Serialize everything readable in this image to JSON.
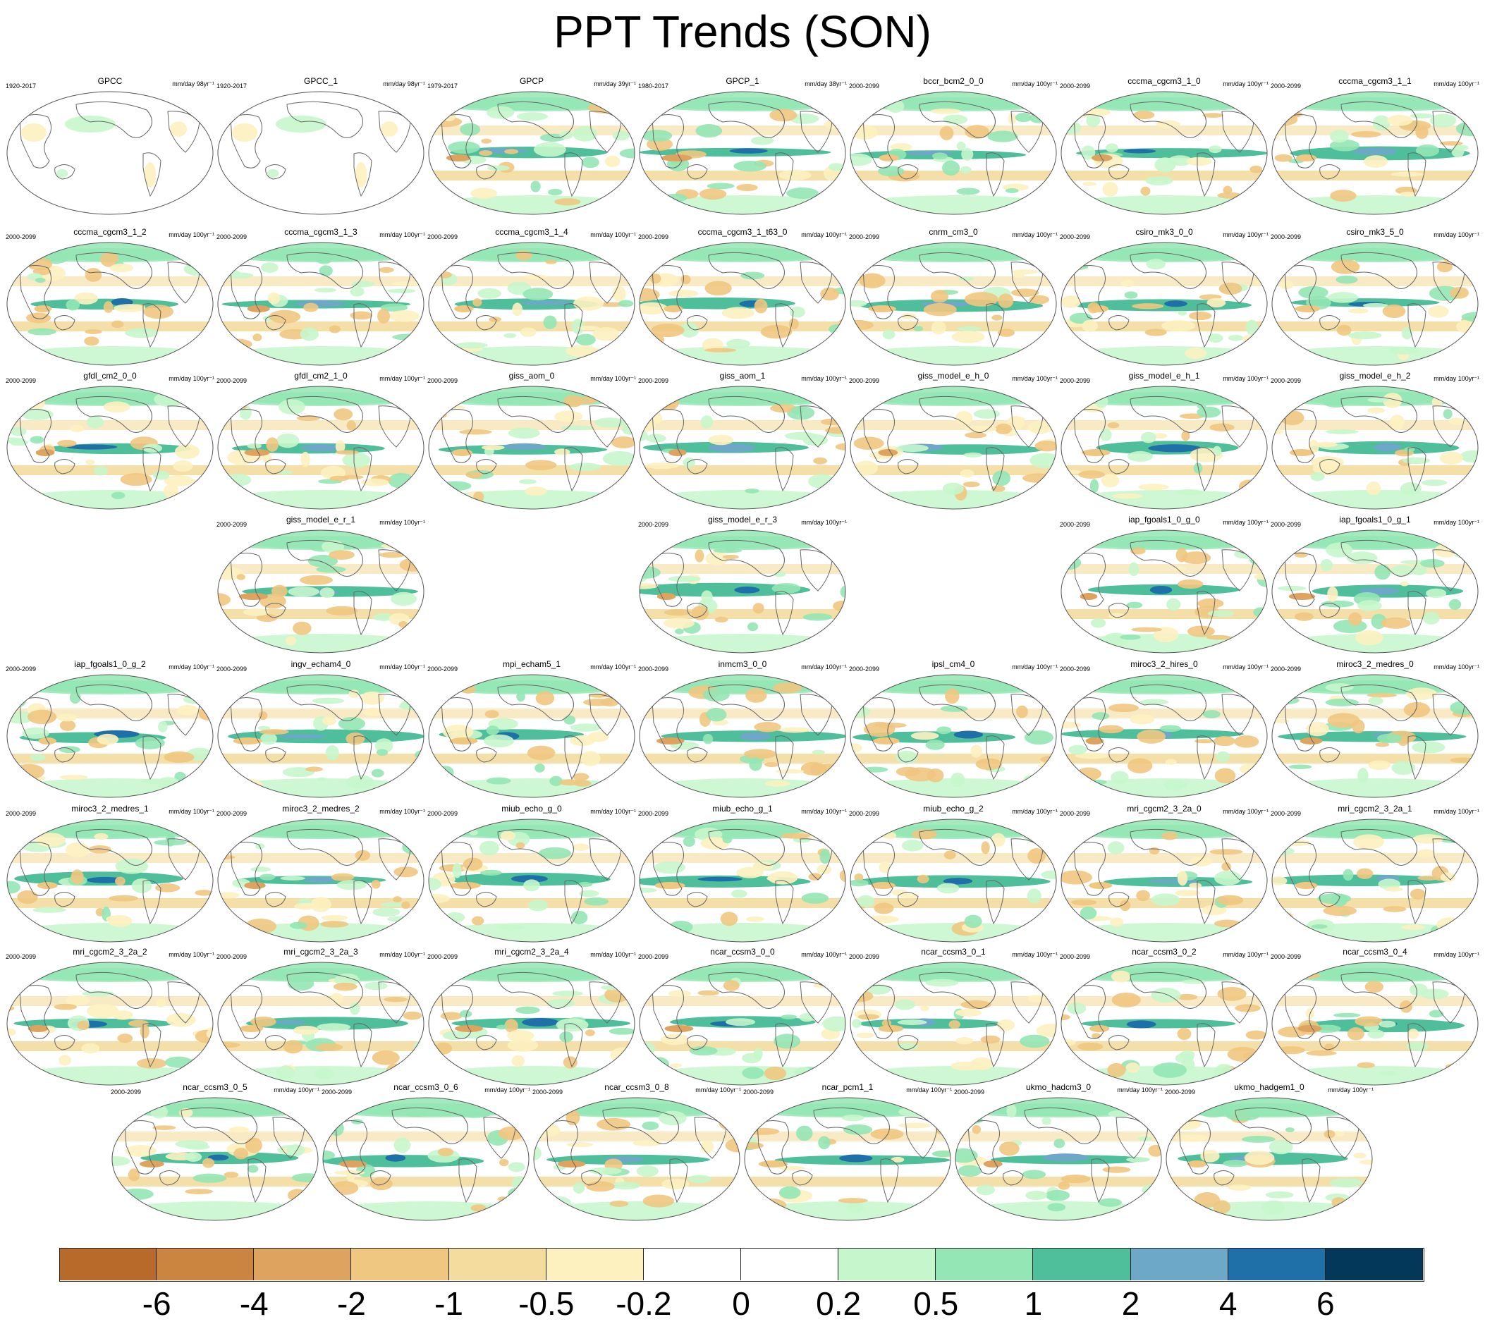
{
  "title": "PPT Trends (SON)",
  "panels": [
    {
      "name": "GPCC",
      "period": "1920-2017",
      "units": "mm/day 98yr⁻¹",
      "coverage": "land"
    },
    {
      "name": "GPCC_1",
      "period": "1920-2017",
      "units": "mm/day 98yr⁻¹",
      "coverage": "land"
    },
    {
      "name": "GPCP",
      "period": "1979-2017",
      "units": "mm/day 39yr⁻¹",
      "coverage": "global"
    },
    {
      "name": "GPCP_1",
      "period": "1980-2017",
      "units": "mm/day 38yr⁻¹",
      "coverage": "global"
    },
    {
      "name": "bccr_bcm2_0_0",
      "period": "2000-2099",
      "units": "mm/day 100yr⁻¹",
      "coverage": "global"
    },
    {
      "name": "cccma_cgcm3_1_0",
      "period": "2000-2099",
      "units": "mm/day 100yr⁻¹",
      "coverage": "global"
    },
    {
      "name": "cccma_cgcm3_1_1",
      "period": "2000-2099",
      "units": "mm/day 100yr⁻¹",
      "coverage": "global"
    },
    {
      "name": "cccma_cgcm3_1_2",
      "period": "2000-2099",
      "units": "mm/day 100yr⁻¹",
      "coverage": "global"
    },
    {
      "name": "cccma_cgcm3_1_3",
      "period": "2000-2099",
      "units": "mm/day 100yr⁻¹",
      "coverage": "global"
    },
    {
      "name": "cccma_cgcm3_1_4",
      "period": "2000-2099",
      "units": "mm/day 100yr⁻¹",
      "coverage": "global"
    },
    {
      "name": "cccma_cgcm3_1_t63_0",
      "period": "2000-2099",
      "units": "mm/day 100yr⁻¹",
      "coverage": "global"
    },
    {
      "name": "cnrm_cm3_0",
      "period": "2000-2099",
      "units": "mm/day 100yr⁻¹",
      "coverage": "global"
    },
    {
      "name": "csiro_mk3_0_0",
      "period": "2000-2099",
      "units": "mm/day 100yr⁻¹",
      "coverage": "global"
    },
    {
      "name": "csiro_mk3_5_0",
      "period": "2000-2099",
      "units": "mm/day 100yr⁻¹",
      "coverage": "global"
    },
    {
      "name": "gfdl_cm2_0_0",
      "period": "2000-2099",
      "units": "mm/day 100yr⁻¹",
      "coverage": "global"
    },
    {
      "name": "gfdl_cm2_1_0",
      "period": "2000-2099",
      "units": "mm/day 100yr⁻¹",
      "coverage": "global"
    },
    {
      "name": "giss_aom_0",
      "period": "2000-2099",
      "units": "mm/day 100yr⁻¹",
      "coverage": "global"
    },
    {
      "name": "giss_aom_1",
      "period": "2000-2099",
      "units": "mm/day 100yr⁻¹",
      "coverage": "global"
    },
    {
      "name": "giss_model_e_h_0",
      "period": "2000-2099",
      "units": "mm/day 100yr⁻¹",
      "coverage": "global"
    },
    {
      "name": "giss_model_e_h_1",
      "period": "2000-2099",
      "units": "mm/day 100yr⁻¹",
      "coverage": "global"
    },
    {
      "name": "giss_model_e_h_2",
      "period": "2000-2099",
      "units": "mm/day 100yr⁻¹",
      "coverage": "global"
    },
    {
      "name": "giss_model_e_r_1",
      "period": "2000-2099",
      "units": "mm/day 100yr⁻¹",
      "coverage": "global"
    },
    {
      "name": "giss_model_e_r_3",
      "period": "2000-2099",
      "units": "mm/day 100yr⁻¹",
      "coverage": "global"
    },
    {
      "name": "iap_fgoals1_0_g_0",
      "period": "2000-2099",
      "units": "mm/day 100yr⁻¹",
      "coverage": "global"
    },
    {
      "name": "iap_fgoals1_0_g_1",
      "period": "2000-2099",
      "units": "mm/day 100yr⁻¹",
      "coverage": "global"
    },
    {
      "name": "iap_fgoals1_0_g_2",
      "period": "2000-2099",
      "units": "mm/day 100yr⁻¹",
      "coverage": "global"
    },
    {
      "name": "ingv_echam4_0",
      "period": "2000-2099",
      "units": "mm/day 100yr⁻¹",
      "coverage": "global"
    },
    {
      "name": "mpi_echam5_1",
      "period": "2000-2099",
      "units": "mm/day 100yr⁻¹",
      "coverage": "global"
    },
    {
      "name": "inmcm3_0_0",
      "period": "2000-2099",
      "units": "mm/day 100yr⁻¹",
      "coverage": "global"
    },
    {
      "name": "ipsl_cm4_0",
      "period": "2000-2099",
      "units": "mm/day 100yr⁻¹",
      "coverage": "global"
    },
    {
      "name": "miroc3_2_hires_0",
      "period": "2000-2099",
      "units": "mm/day 100yr⁻¹",
      "coverage": "global"
    },
    {
      "name": "miroc3_2_medres_0",
      "period": "2000-2099",
      "units": "mm/day 100yr⁻¹",
      "coverage": "global"
    },
    {
      "name": "miroc3_2_medres_1",
      "period": "2000-2099",
      "units": "mm/day 100yr⁻¹",
      "coverage": "global"
    },
    {
      "name": "miroc3_2_medres_2",
      "period": "2000-2099",
      "units": "mm/day 100yr⁻¹",
      "coverage": "global"
    },
    {
      "name": "miub_echo_g_0",
      "period": "2000-2099",
      "units": "mm/day 100yr⁻¹",
      "coverage": "global"
    },
    {
      "name": "miub_echo_g_1",
      "period": "2000-2099",
      "units": "mm/day 100yr⁻¹",
      "coverage": "global"
    },
    {
      "name": "miub_echo_g_2",
      "period": "2000-2099",
      "units": "mm/day 100yr⁻¹",
      "coverage": "global"
    },
    {
      "name": "mri_cgcm2_3_2a_0",
      "period": "2000-2099",
      "units": "mm/day 100yr⁻¹",
      "coverage": "global"
    },
    {
      "name": "mri_cgcm2_3_2a_1",
      "period": "2000-2099",
      "units": "mm/day 100yr⁻¹",
      "coverage": "global"
    },
    {
      "name": "mri_cgcm2_3_2a_2",
      "period": "2000-2099",
      "units": "mm/day 100yr⁻¹",
      "coverage": "global"
    },
    {
      "name": "mri_cgcm2_3_2a_3",
      "period": "2000-2099",
      "units": "mm/day 100yr⁻¹",
      "coverage": "global"
    },
    {
      "name": "mri_cgcm2_3_2a_4",
      "period": "2000-2099",
      "units": "mm/day 100yr⁻¹",
      "coverage": "global"
    },
    {
      "name": "ncar_ccsm3_0_0",
      "period": "2000-2099",
      "units": "mm/day 100yr⁻¹",
      "coverage": "global"
    },
    {
      "name": "ncar_ccsm3_0_1",
      "period": "2000-2099",
      "units": "mm/day 100yr⁻¹",
      "coverage": "global"
    },
    {
      "name": "ncar_ccsm3_0_2",
      "period": "2000-2099",
      "units": "mm/day 100yr⁻¹",
      "coverage": "global"
    },
    {
      "name": "ncar_ccsm3_0_4",
      "period": "2000-2099",
      "units": "mm/day 100yr⁻¹",
      "coverage": "global"
    },
    {
      "name": "ncar_ccsm3_0_5",
      "period": "2000-2099",
      "units": "mm/day 100yr⁻¹",
      "coverage": "global"
    },
    {
      "name": "ncar_ccsm3_0_6",
      "period": "2000-2099",
      "units": "mm/day 100yr⁻¹",
      "coverage": "global"
    },
    {
      "name": "ncar_ccsm3_0_8",
      "period": "2000-2099",
      "units": "mm/day 100yr⁻¹",
      "coverage": "global"
    },
    {
      "name": "ncar_pcm1_1",
      "period": "2000-2099",
      "units": "mm/day 100yr⁻¹",
      "coverage": "global"
    },
    {
      "name": "ukmo_hadcm3_0",
      "period": "2000-2099",
      "units": "mm/day 100yr⁻¹",
      "coverage": "global"
    },
    {
      "name": "ukmo_hadgem1_0",
      "period": "2000-2099",
      "units": "mm/day 100yr⁻¹",
      "coverage": "global"
    }
  ],
  "colorbar": {
    "colors": [
      "#b86a2a",
      "#cc8540",
      "#dea35e",
      "#f0c781",
      "#f4dc9e",
      "#fdf1c0",
      "#ffffff",
      "#ffffff",
      "#c6f6cc",
      "#94e6b4",
      "#4fbe9a",
      "#6ea8c8",
      "#1f6fa8",
      "#04385a"
    ],
    "labels": [
      "-6",
      "-4",
      "-2",
      "-1",
      "-0.5",
      "-0.2",
      "0",
      "0.2",
      "0.5",
      "1",
      "2",
      "4",
      "6"
    ]
  }
}
